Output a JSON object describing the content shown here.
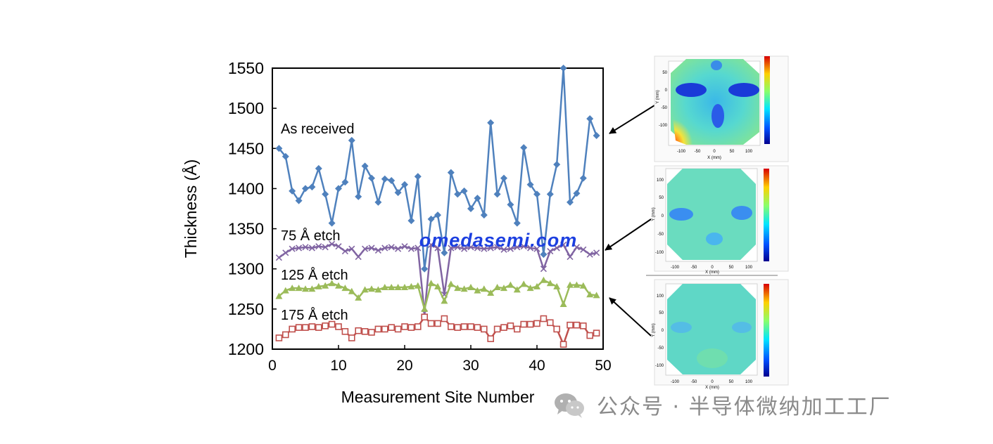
{
  "chart_data": {
    "type": "line",
    "xlabel": "Measurement Site Number",
    "ylabel": "Thickness (Å)",
    "xlim": [
      0,
      50
    ],
    "ylim": [
      1200,
      1550
    ],
    "xticks": [
      0,
      10,
      20,
      30,
      40,
      50
    ],
    "yticks": [
      1200,
      1250,
      1300,
      1350,
      1400,
      1450,
      1500,
      1550
    ],
    "grid": false,
    "x": [
      1,
      2,
      3,
      4,
      5,
      6,
      7,
      8,
      9,
      10,
      11,
      12,
      13,
      14,
      15,
      16,
      17,
      18,
      19,
      20,
      21,
      22,
      23,
      24,
      25,
      26,
      27,
      28,
      29,
      30,
      31,
      32,
      33,
      34,
      35,
      36,
      37,
      38,
      39,
      40,
      41,
      42,
      43,
      44,
      45,
      46,
      47,
      48,
      49
    ],
    "series": [
      {
        "name": "As received",
        "color": "#4f81bd",
        "marker": "diamond",
        "values": [
          1450,
          1440,
          1397,
          1385,
          1400,
          1402,
          1425,
          1393,
          1357,
          1400,
          1408,
          1460,
          1390,
          1428,
          1413,
          1383,
          1412,
          1410,
          1395,
          1405,
          1360,
          1415,
          1300,
          1362,
          1367,
          1320,
          1420,
          1393,
          1397,
          1375,
          1388,
          1367,
          1482,
          1393,
          1413,
          1380,
          1357,
          1451,
          1405,
          1393,
          1318,
          1393,
          1430,
          1550,
          1383,
          1394,
          1413,
          1487,
          1466
        ]
      },
      {
        "name": "75 Å etch",
        "color": "#8064a2",
        "marker": "x",
        "values": [
          1314,
          1320,
          1325,
          1326,
          1327,
          1326,
          1328,
          1327,
          1331,
          1328,
          1322,
          1325,
          1315,
          1325,
          1326,
          1323,
          1326,
          1327,
          1325,
          1328,
          1325,
          1326,
          1245,
          1330,
          1326,
          1268,
          1326,
          1327,
          1325,
          1327,
          1326,
          1325,
          1326,
          1327,
          1324,
          1325,
          1327,
          1328,
          1326,
          1325,
          1300,
          1322,
          1326,
          1330,
          1315,
          1327,
          1324,
          1318,
          1320
        ]
      },
      {
        "name": "125 Å etch",
        "color": "#9bbb59",
        "marker": "triangle",
        "values": [
          1266,
          1273,
          1276,
          1276,
          1275,
          1275,
          1278,
          1279,
          1282,
          1279,
          1276,
          1272,
          1264,
          1274,
          1275,
          1274,
          1277,
          1277,
          1277,
          1277,
          1278,
          1279,
          1250,
          1282,
          1278,
          1260,
          1281,
          1276,
          1275,
          1277,
          1273,
          1275,
          1270,
          1277,
          1276,
          1280,
          1274,
          1281,
          1276,
          1278,
          1286,
          1282,
          1278,
          1256,
          1280,
          1280,
          1279,
          1268,
          1267
        ]
      },
      {
        "name": "175 Å etch",
        "color": "#c0504d",
        "marker": "square",
        "values": [
          1214,
          1218,
          1225,
          1227,
          1227,
          1228,
          1227,
          1229,
          1231,
          1228,
          1222,
          1214,
          1223,
          1222,
          1221,
          1225,
          1225,
          1227,
          1225,
          1228,
          1227,
          1228,
          1240,
          1232,
          1232,
          1238,
          1228,
          1227,
          1228,
          1228,
          1227,
          1225,
          1213,
          1225,
          1227,
          1229,
          1225,
          1231,
          1231,
          1232,
          1238,
          1233,
          1225,
          1206,
          1230,
          1230,
          1229,
          1217,
          1220
        ]
      }
    ]
  },
  "wafer_maps": [
    {
      "xlabel": "X (mm)",
      "ylabel": "Y (mm)",
      "xticks": [
        "-100",
        "-50",
        "0",
        "50",
        "100"
      ],
      "yticks": [
        "50",
        "0",
        "-50",
        "-100"
      ]
    },
    {
      "xlabel": "X (mm)",
      "ylabel": "Y (mm)",
      "xticks": [
        "-100",
        "-50",
        "0",
        "50",
        "100"
      ],
      "yticks": [
        "100",
        "50",
        "0",
        "-50",
        "-100"
      ]
    },
    {
      "xlabel": "X (mm)",
      "ylabel": "Y (mm)",
      "xticks": [
        "-100",
        "-50",
        "0",
        "50",
        "100"
      ],
      "yticks": [
        "100",
        "50",
        "0",
        "-50",
        "-100"
      ]
    }
  ],
  "watermark": "omedasemi.com",
  "footer": {
    "text": "公众号 · 半导体微纳加工工厂",
    "icon": "wechat-icon"
  },
  "colors": {
    "watermark": "#1c3fe0",
    "arrow": "#000000",
    "footer": "#8a8a8a"
  }
}
